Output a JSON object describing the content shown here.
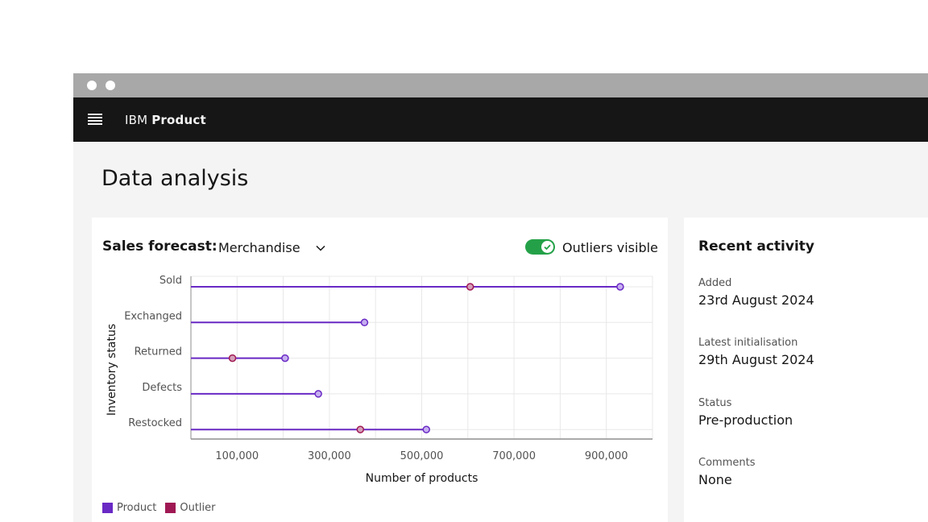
{
  "app": {
    "brand": "IBM",
    "product": "Product"
  },
  "page": {
    "title": "Data analysis"
  },
  "chart_card": {
    "title": "Sales forecast:",
    "dropdown_value": "Merchandise",
    "toggle_label": "Outliers visible",
    "toggle_on": true
  },
  "chart_data": {
    "type": "lollipop",
    "orientation": "horizontal",
    "categories": [
      "Sold",
      "Exchanged",
      "Returned",
      "Defects",
      "Restocked"
    ],
    "series": [
      {
        "name": "Product",
        "color": "#6929c4",
        "values": [
          930000,
          376000,
          204000,
          276000,
          510000
        ]
      },
      {
        "name": "Outlier",
        "color": "#9f1853",
        "values": [
          605000,
          null,
          90000,
          null,
          367000
        ]
      }
    ],
    "xlabel": "Number of products",
    "ylabel": "Inventory status",
    "xticks": [
      100000,
      300000,
      500000,
      700000,
      900000
    ],
    "xtick_labels": [
      "100,000",
      "300,000",
      "500,000",
      "700,000",
      "900,000"
    ],
    "xlim": [
      0,
      1000000
    ],
    "grid": true,
    "legend_position": "bottom-left"
  },
  "legend": {
    "product": "Product",
    "outlier": "Outlier"
  },
  "activity": {
    "title": "Recent activity",
    "fields": [
      {
        "label": "Added",
        "value": "23rd August 2024"
      },
      {
        "label": "Latest initialisation",
        "value": "29th August 2024"
      },
      {
        "label": "Status",
        "value": "Pre-production"
      },
      {
        "label": "Comments",
        "value": "None"
      }
    ]
  },
  "colors": {
    "header_bg": "#161616",
    "toggle_on": "#24a148",
    "product": "#6929c4",
    "outlier": "#9f1853"
  }
}
